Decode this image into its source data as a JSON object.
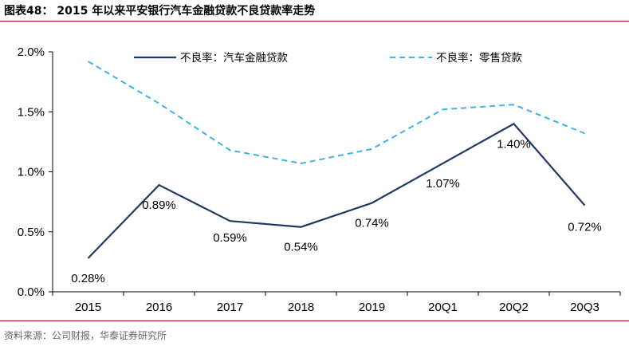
{
  "header": {
    "title": "图表48：  2015 年以来平安银行汽车金融贷款不良贷款率走势"
  },
  "footer": {
    "source": "资料来源：公司财报，华泰证券研究所"
  },
  "colors": {
    "rule": "#c00000",
    "auto_finance": "#1f3864",
    "retail": "#3cb4e6"
  },
  "chart_data": {
    "type": "line",
    "categories": [
      "2015",
      "2016",
      "2017",
      "2018",
      "2019",
      "20Q1",
      "20Q2",
      "20Q3"
    ],
    "y_ticks": [
      "2.0%",
      "1.5%",
      "1.0%",
      "0.5%",
      "0.0%"
    ],
    "ylim": [
      0,
      0.02
    ],
    "legend_position": "top",
    "grid": false,
    "series": [
      {
        "name": "不良率：汽车金融贷款",
        "style": "solid",
        "values": [
          0.0028,
          0.0089,
          0.0059,
          0.0054,
          0.0074,
          0.0107,
          0.014,
          0.0072
        ],
        "labels": [
          "0.28%",
          "0.89%",
          "0.59%",
          "0.54%",
          "0.74%",
          "1.07%",
          "1.40%",
          "0.72%"
        ]
      },
      {
        "name": "不良率：零售贷款",
        "style": "dashed",
        "values": [
          0.0192,
          0.0157,
          0.0118,
          0.0107,
          0.0119,
          0.0152,
          0.0156,
          0.0132
        ]
      }
    ]
  }
}
